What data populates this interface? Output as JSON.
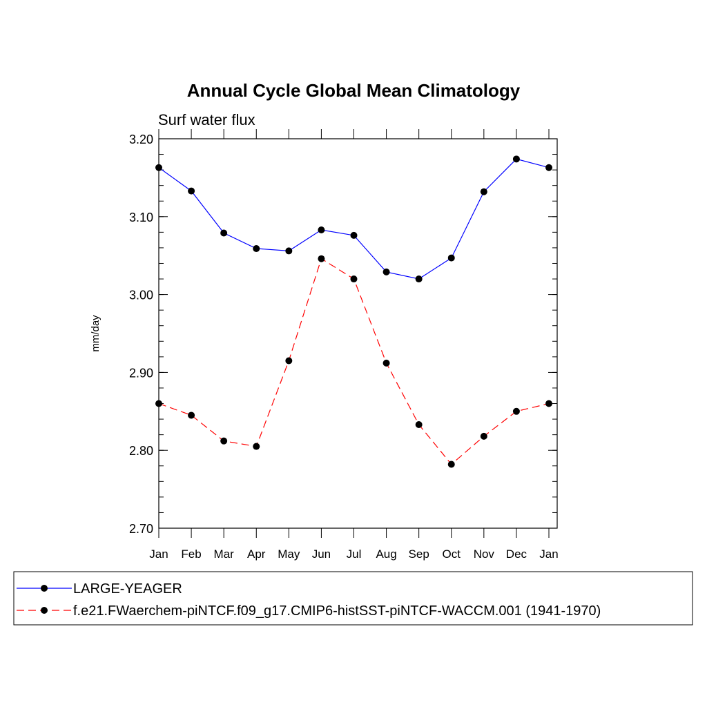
{
  "chart_data": {
    "type": "line",
    "title": "Annual Cycle Global Mean Climatology",
    "subtitle": "Surf water flux",
    "ylabel": "mm/day",
    "xlabel": "",
    "categories": [
      "Jan",
      "Feb",
      "Mar",
      "Apr",
      "May",
      "Jun",
      "Jul",
      "Aug",
      "Sep",
      "Oct",
      "Nov",
      "Dec",
      "Jan"
    ],
    "ylim": [
      2.7,
      3.2
    ],
    "yticks": [
      "2.70",
      "2.80",
      "2.90",
      "3.00",
      "3.10",
      "3.20"
    ],
    "grid": false,
    "legend_position": "bottom",
    "series": [
      {
        "name": "LARGE-YEAGER",
        "color": "#0000ff",
        "style": "solid",
        "values": [
          3.163,
          3.133,
          3.079,
          3.059,
          3.056,
          3.083,
          3.076,
          3.029,
          3.02,
          3.047,
          3.132,
          3.174,
          3.163
        ]
      },
      {
        "name": "f.e21.FWaerchem-piNTCF.f09_g17.CMIP6-histSST-piNTCF-WACCM.001 (1941-1970)",
        "color": "#ff0000",
        "style": "dashed",
        "values": [
          2.86,
          2.845,
          2.812,
          2.805,
          2.915,
          3.046,
          3.02,
          2.912,
          2.833,
          2.782,
          2.818,
          2.85,
          2.86
        ]
      }
    ]
  }
}
